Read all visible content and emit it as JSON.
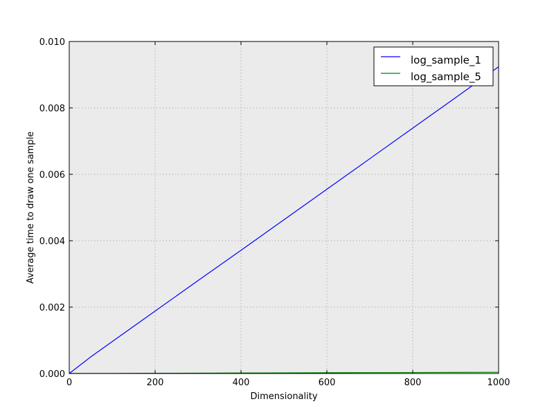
{
  "chart_data": {
    "type": "line",
    "title": "",
    "xlabel": "Dimensionality",
    "ylabel": "Average time to draw one sample",
    "xlim": [
      0,
      1000
    ],
    "ylim": [
      0,
      0.01
    ],
    "x_ticks": [
      "0",
      "200",
      "400",
      "600",
      "800",
      "1000"
    ],
    "y_ticks": [
      "0.000",
      "0.002",
      "0.004",
      "0.006",
      "0.008",
      "0.010"
    ],
    "grid": true,
    "background_color": "#ebebeb",
    "legend_position": "top-right",
    "series": [
      {
        "name": "log_sample_1",
        "color": "#0000ff",
        "x": [
          0,
          50,
          100,
          200,
          300,
          400,
          500,
          600,
          700,
          800,
          900,
          1000
        ],
        "y": [
          0.0,
          0.0005,
          0.00096,
          0.00188,
          0.0028,
          0.00371,
          0.00463,
          0.00555,
          0.00647,
          0.00739,
          0.00831,
          0.00924
        ]
      },
      {
        "name": "log_sample_5",
        "color": "#008000",
        "x": [
          0,
          50,
          100,
          200,
          300,
          400,
          500,
          600,
          700,
          800,
          900,
          1000
        ],
        "y": [
          0.0,
          2e-06,
          4e-06,
          8e-06,
          1.1e-05,
          1.5e-05,
          1.9e-05,
          2.3e-05,
          2.7e-05,
          3e-05,
          3.4e-05,
          3.8e-05
        ]
      }
    ]
  }
}
